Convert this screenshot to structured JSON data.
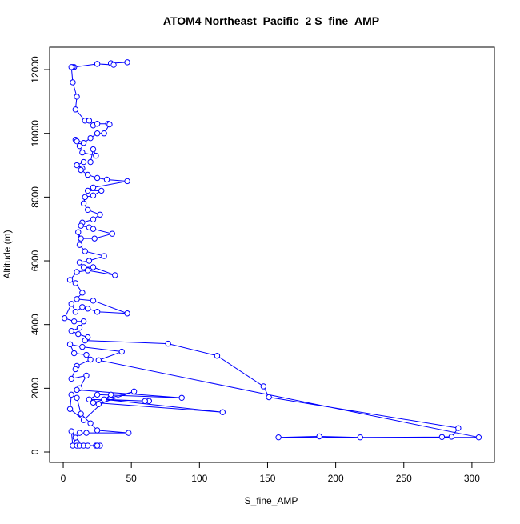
{
  "chart_data": {
    "type": "line",
    "title": "ATOM4 Northeast_Pacific_2 S_fine_AMP",
    "xlabel": "S_fine_AMP",
    "ylabel": "Altitude (m)",
    "x": [
      47,
      35,
      37,
      25,
      8,
      7,
      6,
      7,
      10,
      9,
      16,
      19,
      22,
      25,
      33,
      34,
      30,
      25,
      20,
      15,
      9,
      10,
      12,
      14,
      24,
      22,
      20,
      15,
      10,
      14,
      13,
      18,
      25,
      32,
      47,
      22,
      18,
      28,
      22,
      16,
      15,
      18,
      27,
      22,
      14,
      13,
      19,
      22,
      36,
      23,
      13,
      11,
      12,
      16,
      30,
      19,
      12,
      15,
      22,
      38,
      18,
      10,
      5,
      9,
      14,
      10,
      22,
      47,
      25,
      18,
      14,
      9,
      6,
      1,
      8,
      15,
      12,
      6,
      11,
      18,
      16,
      77,
      113,
      147,
      151,
      290,
      285,
      278,
      218,
      188,
      158,
      305,
      26,
      43,
      14,
      5,
      8,
      17,
      20,
      10,
      9,
      6,
      17,
      12,
      10,
      87,
      25,
      19,
      63,
      60,
      30,
      117,
      22,
      52,
      26,
      35,
      15,
      5,
      6,
      10,
      13,
      20,
      25,
      48,
      17,
      12,
      9,
      10,
      6,
      7,
      10,
      12,
      15,
      18,
      24,
      27,
      25
    ],
    "series": [
      {
        "name": "S_fine_AMP",
        "color": "#0000ff",
        "values": [
          12230,
          12200,
          12150,
          12180,
          12080,
          12080,
          12080,
          11600,
          11150,
          10750,
          10400,
          10400,
          10250,
          10300,
          10300,
          10280,
          10000,
          10000,
          9850,
          9700,
          9800,
          9750,
          9600,
          9400,
          9300,
          9500,
          9100,
          9100,
          9000,
          8900,
          8850,
          8700,
          8600,
          8550,
          8500,
          8300,
          8200,
          8200,
          8050,
          8000,
          7800,
          7600,
          7450,
          7300,
          7200,
          7100,
          7050,
          7000,
          6850,
          6700,
          6700,
          6900,
          6500,
          6300,
          6150,
          6000,
          5950,
          5800,
          5800,
          5550,
          5700,
          5650,
          5400,
          5300,
          5000,
          4800,
          4750,
          4350,
          4400,
          4500,
          4550,
          4400,
          4650,
          4200,
          4100,
          4100,
          3900,
          3800,
          3700,
          3600,
          3500,
          3400,
          3020,
          2060,
          1720,
          750,
          480,
          470,
          460,
          490,
          460,
          460,
          2880,
          3150,
          3300,
          3380,
          3100,
          3050,
          2900,
          2700,
          2600,
          2300,
          2400,
          2000,
          1950,
          1700,
          1800,
          1650,
          1600,
          1600,
          1650,
          1250,
          1550,
          1900,
          1500,
          1800,
          1000,
          1350,
          1800,
          1700,
          1200,
          900,
          680,
          600,
          600,
          600,
          450,
          300,
          650,
          200,
          200,
          200,
          200,
          200,
          200,
          200,
          200
        ]
      }
    ],
    "xlim": [
      -10,
      316.5
    ],
    "ylim": [
      -326,
      12704
    ],
    "xticks": [
      0,
      50,
      100,
      150,
      200,
      250,
      300
    ],
    "yticks": [
      0,
      2000,
      4000,
      6000,
      8000,
      10000,
      12000
    ]
  }
}
